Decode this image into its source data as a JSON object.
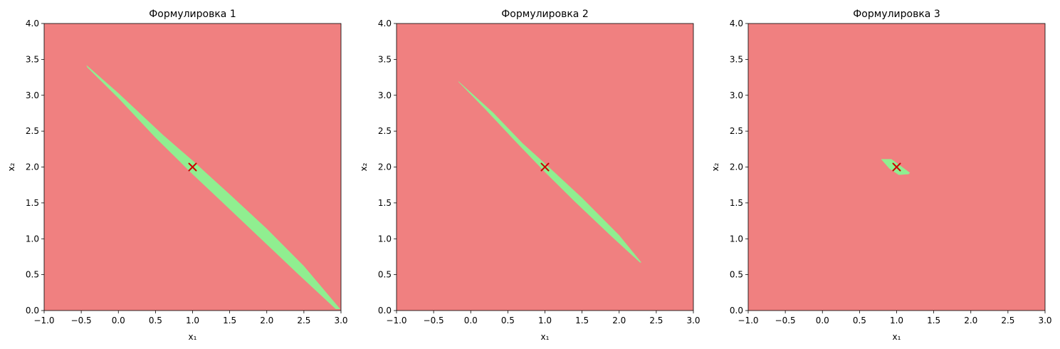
{
  "colors": {
    "infeasible": "#F08080",
    "feasible": "#90EE90",
    "marker": "#CC0000",
    "axis": "#000000"
  },
  "chart_data": [
    {
      "type": "area",
      "title": "Формулировка 1",
      "xlabel": "x₁",
      "ylabel": "x₂",
      "xlim": [
        -1.0,
        3.0
      ],
      "ylim": [
        0.0,
        4.0
      ],
      "xticks": [
        -1.0,
        -0.5,
        0.0,
        0.5,
        1.0,
        1.5,
        2.0,
        2.5,
        3.0
      ],
      "xtick_labels": [
        "−1.0",
        "−0.5",
        "0.0",
        "0.5",
        "1.0",
        "1.5",
        "2.0",
        "2.5",
        "3.0"
      ],
      "yticks": [
        0.0,
        0.5,
        1.0,
        1.5,
        2.0,
        2.5,
        3.0,
        3.5,
        4.0
      ],
      "ytick_labels": [
        "0.0",
        "0.5",
        "1.0",
        "1.5",
        "2.0",
        "2.5",
        "3.0",
        "3.5",
        "4.0"
      ],
      "background_region": "infeasible",
      "feasible_region": [
        [
          -0.43,
          3.42
        ],
        [
          0.0,
          3.03
        ],
        [
          0.6,
          2.45
        ],
        [
          1.0,
          2.09
        ],
        [
          1.5,
          1.62
        ],
        [
          2.0,
          1.14
        ],
        [
          2.5,
          0.62
        ],
        [
          2.99,
          0.02
        ],
        [
          2.93,
          0.02
        ],
        [
          2.4,
          0.53
        ],
        [
          1.9,
          1.02
        ],
        [
          1.4,
          1.51
        ],
        [
          1.0,
          1.9
        ],
        [
          0.5,
          2.41
        ],
        [
          0.0,
          2.96
        ],
        [
          -0.42,
          3.39
        ]
      ],
      "optimum": {
        "x": 1.0,
        "y": 2.0,
        "marker": "x"
      }
    },
    {
      "type": "area",
      "title": "Формулировка 2",
      "xlabel": "x₁",
      "ylabel": "x₂",
      "xlim": [
        -1.0,
        3.0
      ],
      "ylim": [
        0.0,
        4.0
      ],
      "xticks": [
        -1.0,
        -0.5,
        0.0,
        0.5,
        1.0,
        1.5,
        2.0,
        2.5,
        3.0
      ],
      "xtick_labels": [
        "−1.0",
        "−0.5",
        "0.0",
        "0.5",
        "1.0",
        "1.5",
        "2.0",
        "2.5",
        "3.0"
      ],
      "yticks": [
        0.0,
        0.5,
        1.0,
        1.5,
        2.0,
        2.5,
        3.0,
        3.5,
        4.0
      ],
      "ytick_labels": [
        "0.0",
        "0.5",
        "1.0",
        "1.5",
        "2.0",
        "2.5",
        "3.0",
        "3.5",
        "4.0"
      ],
      "background_region": "infeasible",
      "feasible_region": [
        [
          -0.17,
          3.2
        ],
        [
          0.3,
          2.76
        ],
        [
          0.7,
          2.33
        ],
        [
          1.0,
          2.05
        ],
        [
          1.5,
          1.57
        ],
        [
          2.0,
          1.05
        ],
        [
          2.3,
          0.67
        ],
        [
          2.28,
          0.67
        ],
        [
          1.9,
          1.03
        ],
        [
          1.4,
          1.52
        ],
        [
          1.0,
          1.93
        ],
        [
          0.6,
          2.36
        ],
        [
          0.2,
          2.8
        ],
        [
          -0.16,
          3.18
        ]
      ],
      "optimum": {
        "x": 1.0,
        "y": 2.0,
        "marker": "x"
      }
    },
    {
      "type": "area",
      "title": "Формулировка 3",
      "xlabel": "x₁",
      "ylabel": "x₂",
      "xlim": [
        -1.0,
        3.0
      ],
      "ylim": [
        0.0,
        4.0
      ],
      "xticks": [
        -1.0,
        -0.5,
        0.0,
        0.5,
        1.0,
        1.5,
        2.0,
        2.5,
        3.0
      ],
      "xtick_labels": [
        "−1.0",
        "−0.5",
        "0.0",
        "0.5",
        "1.0",
        "1.5",
        "2.0",
        "2.5",
        "3.0"
      ],
      "yticks": [
        0.0,
        0.5,
        1.0,
        1.5,
        2.0,
        2.5,
        3.0,
        3.5,
        4.0
      ],
      "ytick_labels": [
        "0.0",
        "0.5",
        "1.0",
        "1.5",
        "2.0",
        "2.5",
        "3.0",
        "3.5",
        "4.0"
      ],
      "background_region": "infeasible",
      "feasible_region": [
        [
          0.79,
          2.11
        ],
        [
          0.93,
          2.11
        ],
        [
          1.18,
          1.92
        ],
        [
          1.16,
          1.9
        ],
        [
          1.03,
          1.89
        ],
        [
          0.9,
          1.98
        ]
      ],
      "optimum": {
        "x": 1.0,
        "y": 2.0,
        "marker": "x"
      }
    }
  ]
}
